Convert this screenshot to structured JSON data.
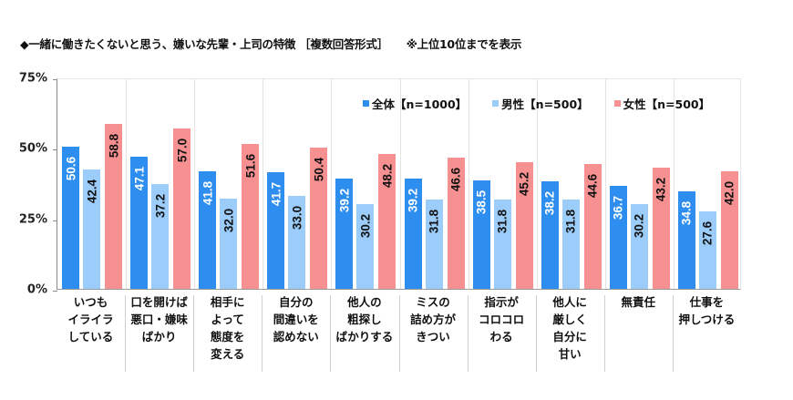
{
  "title": {
    "main": "◆一緒に働きたくないと思う、嫌いな先輩・上司の特徴 ［複数回答形式］",
    "note": "※上位10位までを表示"
  },
  "colors": {
    "overall": "#2e8ef0",
    "male": "#9ccdfa",
    "female": "#f79191"
  },
  "legend": [
    {
      "label": "全体【n=1000】",
      "color": "#2e8ef0"
    },
    {
      "label": "男性【n=500】",
      "color": "#9ccdfa"
    },
    {
      "label": "女性【n=500】",
      "color": "#f79191"
    }
  ],
  "y_axis": {
    "ticks": [
      "75%",
      "50%",
      "25%",
      "0%"
    ]
  },
  "categories_display": [
    "いつも\nイライラ\nしている",
    "口を開けば\n悪口・嫌味\nばかり",
    "相手に\nよって\n態度を\n変える",
    "自分の\n間違いを\n認めない",
    "他人の\n粗探し\nばかりする",
    "ミスの\n詰め方が\nきつい",
    "指示が\nコロコロ\nわる",
    "他人に\n厳しく\n自分に\n甘い",
    "無責任",
    "仕事を\n押しつける"
  ],
  "chart_data": {
    "type": "bar",
    "title": "◆一緒に働きたくないと思う、嫌いな先輩・上司の特徴 ［複数回答形式］ ※上位10位までを表示",
    "categories": [
      "いつもイライラしている",
      "口を開けば悪口・嫌味ばかり",
      "相手によって態度を変える",
      "自分の間違いを認めない",
      "他人の粗探しばかりする",
      "ミスの詰め方がきつい",
      "指示がコロコロわる",
      "他人に厳しく自分に甘い",
      "無責任",
      "仕事を押しつける"
    ],
    "series": [
      {
        "name": "全体【n=1000】",
        "color": "#2e8ef0",
        "values": [
          50.6,
          47.1,
          41.8,
          41.7,
          39.2,
          39.2,
          38.5,
          38.2,
          36.7,
          34.8
        ]
      },
      {
        "name": "男性【n=500】",
        "color": "#9ccdfa",
        "values": [
          42.4,
          37.2,
          32.0,
          33.0,
          30.2,
          31.8,
          31.8,
          31.8,
          30.2,
          27.6
        ]
      },
      {
        "name": "女性【n=500】",
        "color": "#f79191",
        "values": [
          58.8,
          57.0,
          51.6,
          50.4,
          48.2,
          46.6,
          45.2,
          44.6,
          43.2,
          42.0
        ]
      }
    ],
    "xlabel": "",
    "ylabel": "",
    "ylim": [
      0,
      75
    ],
    "yticks": [
      0,
      25,
      50,
      75
    ],
    "ytick_labels": [
      "0%",
      "25%",
      "50%",
      "75%"
    ],
    "legend_position": "top-right inside plot",
    "grid": false,
    "data_labels": "rotated vertical inside top of bars"
  }
}
